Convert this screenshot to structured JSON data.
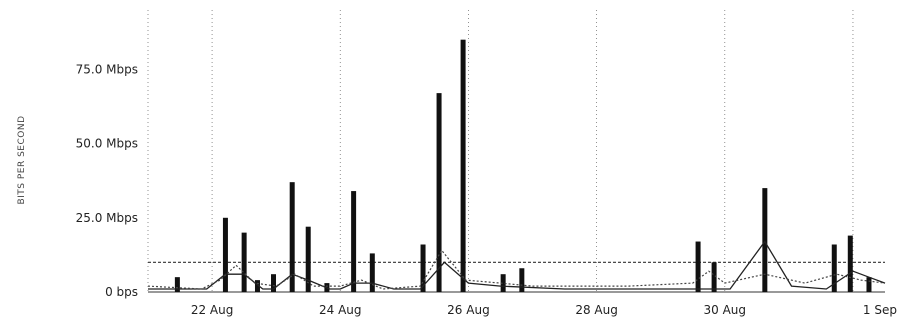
{
  "chart_data": {
    "type": "bar",
    "ylabel": "BITS PER SECOND",
    "y_unit": "Mbps",
    "ylim": [
      0,
      95
    ],
    "y_ticks": [
      {
        "value": 0,
        "label": "0 bps"
      },
      {
        "value": 25,
        "label": "25.0 Mbps"
      },
      {
        "value": 50,
        "label": "50.0 Mbps"
      },
      {
        "value": 75,
        "label": "75.0 Mbps"
      }
    ],
    "xlim": [
      "2014-08-21T00:00",
      "2014-09-01T12:00"
    ],
    "x_ticks": [
      {
        "value": "2014-08-22",
        "label": "22 Aug"
      },
      {
        "value": "2014-08-24",
        "label": "24 Aug"
      },
      {
        "value": "2014-08-26",
        "label": "26 Aug"
      },
      {
        "value": "2014-08-28",
        "label": "28 Aug"
      },
      {
        "value": "2014-08-30",
        "label": "30 Aug"
      },
      {
        "value": "2014-09-01",
        "label": "1 Sep"
      }
    ],
    "grid": "vertical dotted lines at x ticks",
    "reference_line": {
      "value": 10
    },
    "series": [
      {
        "style": "vertical bars",
        "color": "#111111",
        "points": [
          {
            "x": "2014-08-21T11:00",
            "y": 5
          },
          {
            "x": "2014-08-22T05:00",
            "y": 25
          },
          {
            "x": "2014-08-22T12:00",
            "y": 20
          },
          {
            "x": "2014-08-22T17:00",
            "y": 4
          },
          {
            "x": "2014-08-22T23:00",
            "y": 6
          },
          {
            "x": "2014-08-23T06:00",
            "y": 37
          },
          {
            "x": "2014-08-23T12:00",
            "y": 22
          },
          {
            "x": "2014-08-23T19:00",
            "y": 3
          },
          {
            "x": "2014-08-24T05:00",
            "y": 34
          },
          {
            "x": "2014-08-24T12:00",
            "y": 13
          },
          {
            "x": "2014-08-25T07:00",
            "y": 16
          },
          {
            "x": "2014-08-25T13:00",
            "y": 67
          },
          {
            "x": "2014-08-25T22:00",
            "y": 85
          },
          {
            "x": "2014-08-26T13:00",
            "y": 6
          },
          {
            "x": "2014-08-26T20:00",
            "y": 8
          },
          {
            "x": "2014-08-29T14:00",
            "y": 17
          },
          {
            "x": "2014-08-29T20:00",
            "y": 10
          },
          {
            "x": "2014-08-30T15:00",
            "y": 35
          },
          {
            "x": "2014-08-31T17:00",
            "y": 16
          },
          {
            "x": "2014-08-31T23:00",
            "y": 19
          },
          {
            "x": "2014-09-01T06:00",
            "y": 5
          }
        ]
      },
      {
        "style": "thin solid line",
        "color": "#222222",
        "points": [
          {
            "x": "2014-08-21T00:00",
            "y": 1
          },
          {
            "x": "2014-08-21T22:00",
            "y": 1
          },
          {
            "x": "2014-08-22T05:00",
            "y": 6
          },
          {
            "x": "2014-08-22T12:00",
            "y": 6
          },
          {
            "x": "2014-08-22T19:00",
            "y": 1
          },
          {
            "x": "2014-08-22T23:00",
            "y": 1
          },
          {
            "x": "2014-08-23T06:00",
            "y": 6
          },
          {
            "x": "2014-08-23T12:00",
            "y": 4
          },
          {
            "x": "2014-08-23T20:00",
            "y": 1
          },
          {
            "x": "2014-08-24T00:00",
            "y": 1
          },
          {
            "x": "2014-08-24T05:00",
            "y": 3
          },
          {
            "x": "2014-08-24T12:00",
            "y": 3
          },
          {
            "x": "2014-08-24T20:00",
            "y": 1
          },
          {
            "x": "2014-08-25T06:00",
            "y": 1
          },
          {
            "x": "2014-08-25T15:00",
            "y": 10
          },
          {
            "x": "2014-08-26T00:00",
            "y": 3
          },
          {
            "x": "2014-08-26T12:00",
            "y": 2
          },
          {
            "x": "2014-08-27T12:00",
            "y": 1
          },
          {
            "x": "2014-08-29T14:00",
            "y": 1
          },
          {
            "x": "2014-08-30T02:00",
            "y": 1
          },
          {
            "x": "2014-08-30T15:00",
            "y": 17
          },
          {
            "x": "2014-08-31T01:00",
            "y": 2
          },
          {
            "x": "2014-08-31T14:00",
            "y": 1
          },
          {
            "x": "2014-09-01T00:00",
            "y": 7
          },
          {
            "x": "2014-09-01T06:00",
            "y": 5
          },
          {
            "x": "2014-09-01T12:00",
            "y": 3
          }
        ]
      },
      {
        "style": "dotted line",
        "color": "#444444",
        "points": [
          {
            "x": "2014-08-21T00:00",
            "y": 2
          },
          {
            "x": "2014-08-21T20:00",
            "y": 1
          },
          {
            "x": "2014-08-22T03:00",
            "y": 4
          },
          {
            "x": "2014-08-22T09:00",
            "y": 9
          },
          {
            "x": "2014-08-22T16:00",
            "y": 3
          },
          {
            "x": "2014-08-23T00:00",
            "y": 2
          },
          {
            "x": "2014-08-23T07:00",
            "y": 6
          },
          {
            "x": "2014-08-23T14:00",
            "y": 2
          },
          {
            "x": "2014-08-24T00:00",
            "y": 2
          },
          {
            "x": "2014-08-24T08:00",
            "y": 4
          },
          {
            "x": "2014-08-24T16:00",
            "y": 1
          },
          {
            "x": "2014-08-25T06:00",
            "y": 2
          },
          {
            "x": "2014-08-25T14:00",
            "y": 14
          },
          {
            "x": "2014-08-25T23:00",
            "y": 4
          },
          {
            "x": "2014-08-26T12:00",
            "y": 3
          },
          {
            "x": "2014-08-27T00:00",
            "y": 2
          },
          {
            "x": "2014-08-28T12:00",
            "y": 2
          },
          {
            "x": "2014-08-29T12:00",
            "y": 3
          },
          {
            "x": "2014-08-29T18:00",
            "y": 7
          },
          {
            "x": "2014-08-30T00:00",
            "y": 3
          },
          {
            "x": "2014-08-30T15:00",
            "y": 6
          },
          {
            "x": "2014-08-31T06:00",
            "y": 3
          },
          {
            "x": "2014-08-31T18:00",
            "y": 6
          },
          {
            "x": "2014-09-01T03:00",
            "y": 4
          },
          {
            "x": "2014-09-01T12:00",
            "y": 3
          }
        ]
      }
    ]
  }
}
